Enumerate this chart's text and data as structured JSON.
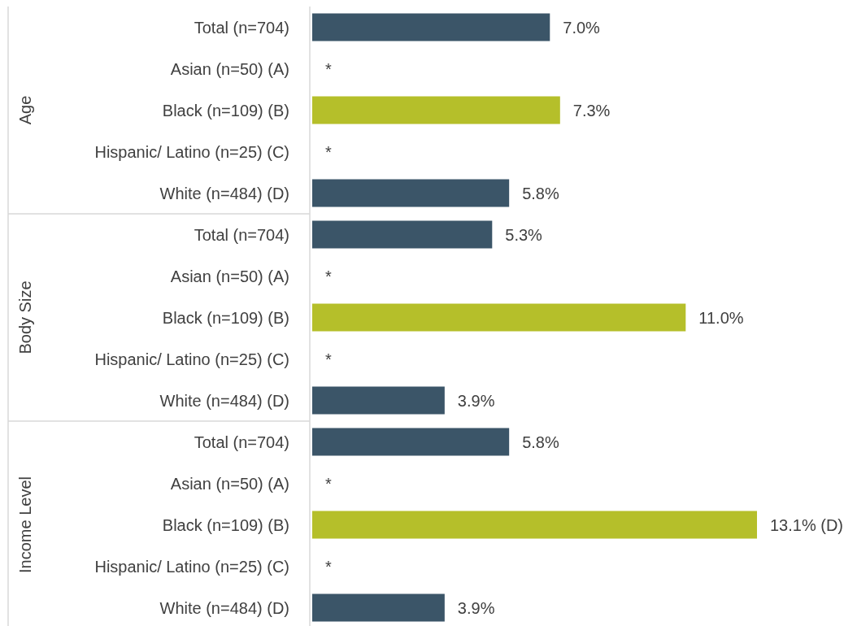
{
  "chart_data": [
    {
      "type": "bar",
      "orientation": "horizontal",
      "ylabel": "Age",
      "categories": [
        "Total (n=704)",
        "Asian (n=50) (A)",
        "Black (n=109) (B)",
        "Hispanic/ Latino (n=25) (C)",
        "White (n=484) (D)"
      ],
      "values": [
        7.0,
        null,
        7.3,
        null,
        5.8
      ],
      "colors": [
        "#3b5568",
        null,
        "#b5bf2a",
        null,
        "#3b5568"
      ],
      "value_labels": [
        "7.0%",
        "*",
        "7.3%",
        "*",
        "5.8%"
      ]
    },
    {
      "type": "bar",
      "orientation": "horizontal",
      "ylabel": "Body Size",
      "categories": [
        "Total (n=704)",
        "Asian (n=50) (A)",
        "Black (n=109) (B)",
        "Hispanic/ Latino (n=25) (C)",
        "White (n=484) (D)"
      ],
      "values": [
        5.3,
        null,
        11.0,
        null,
        3.9
      ],
      "colors": [
        "#3b5568",
        null,
        "#b5bf2a",
        null,
        "#3b5568"
      ],
      "value_labels": [
        "5.3%",
        "*",
        "11.0%",
        "*",
        "3.9%"
      ]
    },
    {
      "type": "bar",
      "orientation": "horizontal",
      "ylabel": "Income Level",
      "categories": [
        "Total (n=704)",
        "Asian (n=50) (A)",
        "Black (n=109) (B)",
        "Hispanic/ Latino (n=25) (C)",
        "White (n=484) (D)"
      ],
      "values": [
        5.8,
        null,
        13.1,
        null,
        3.9
      ],
      "colors": [
        "#3b5568",
        null,
        "#b5bf2a",
        null,
        "#3b5568"
      ],
      "value_labels": [
        "5.8%",
        "*",
        "13.1% (D)",
        "*",
        "3.9%"
      ]
    }
  ]
}
